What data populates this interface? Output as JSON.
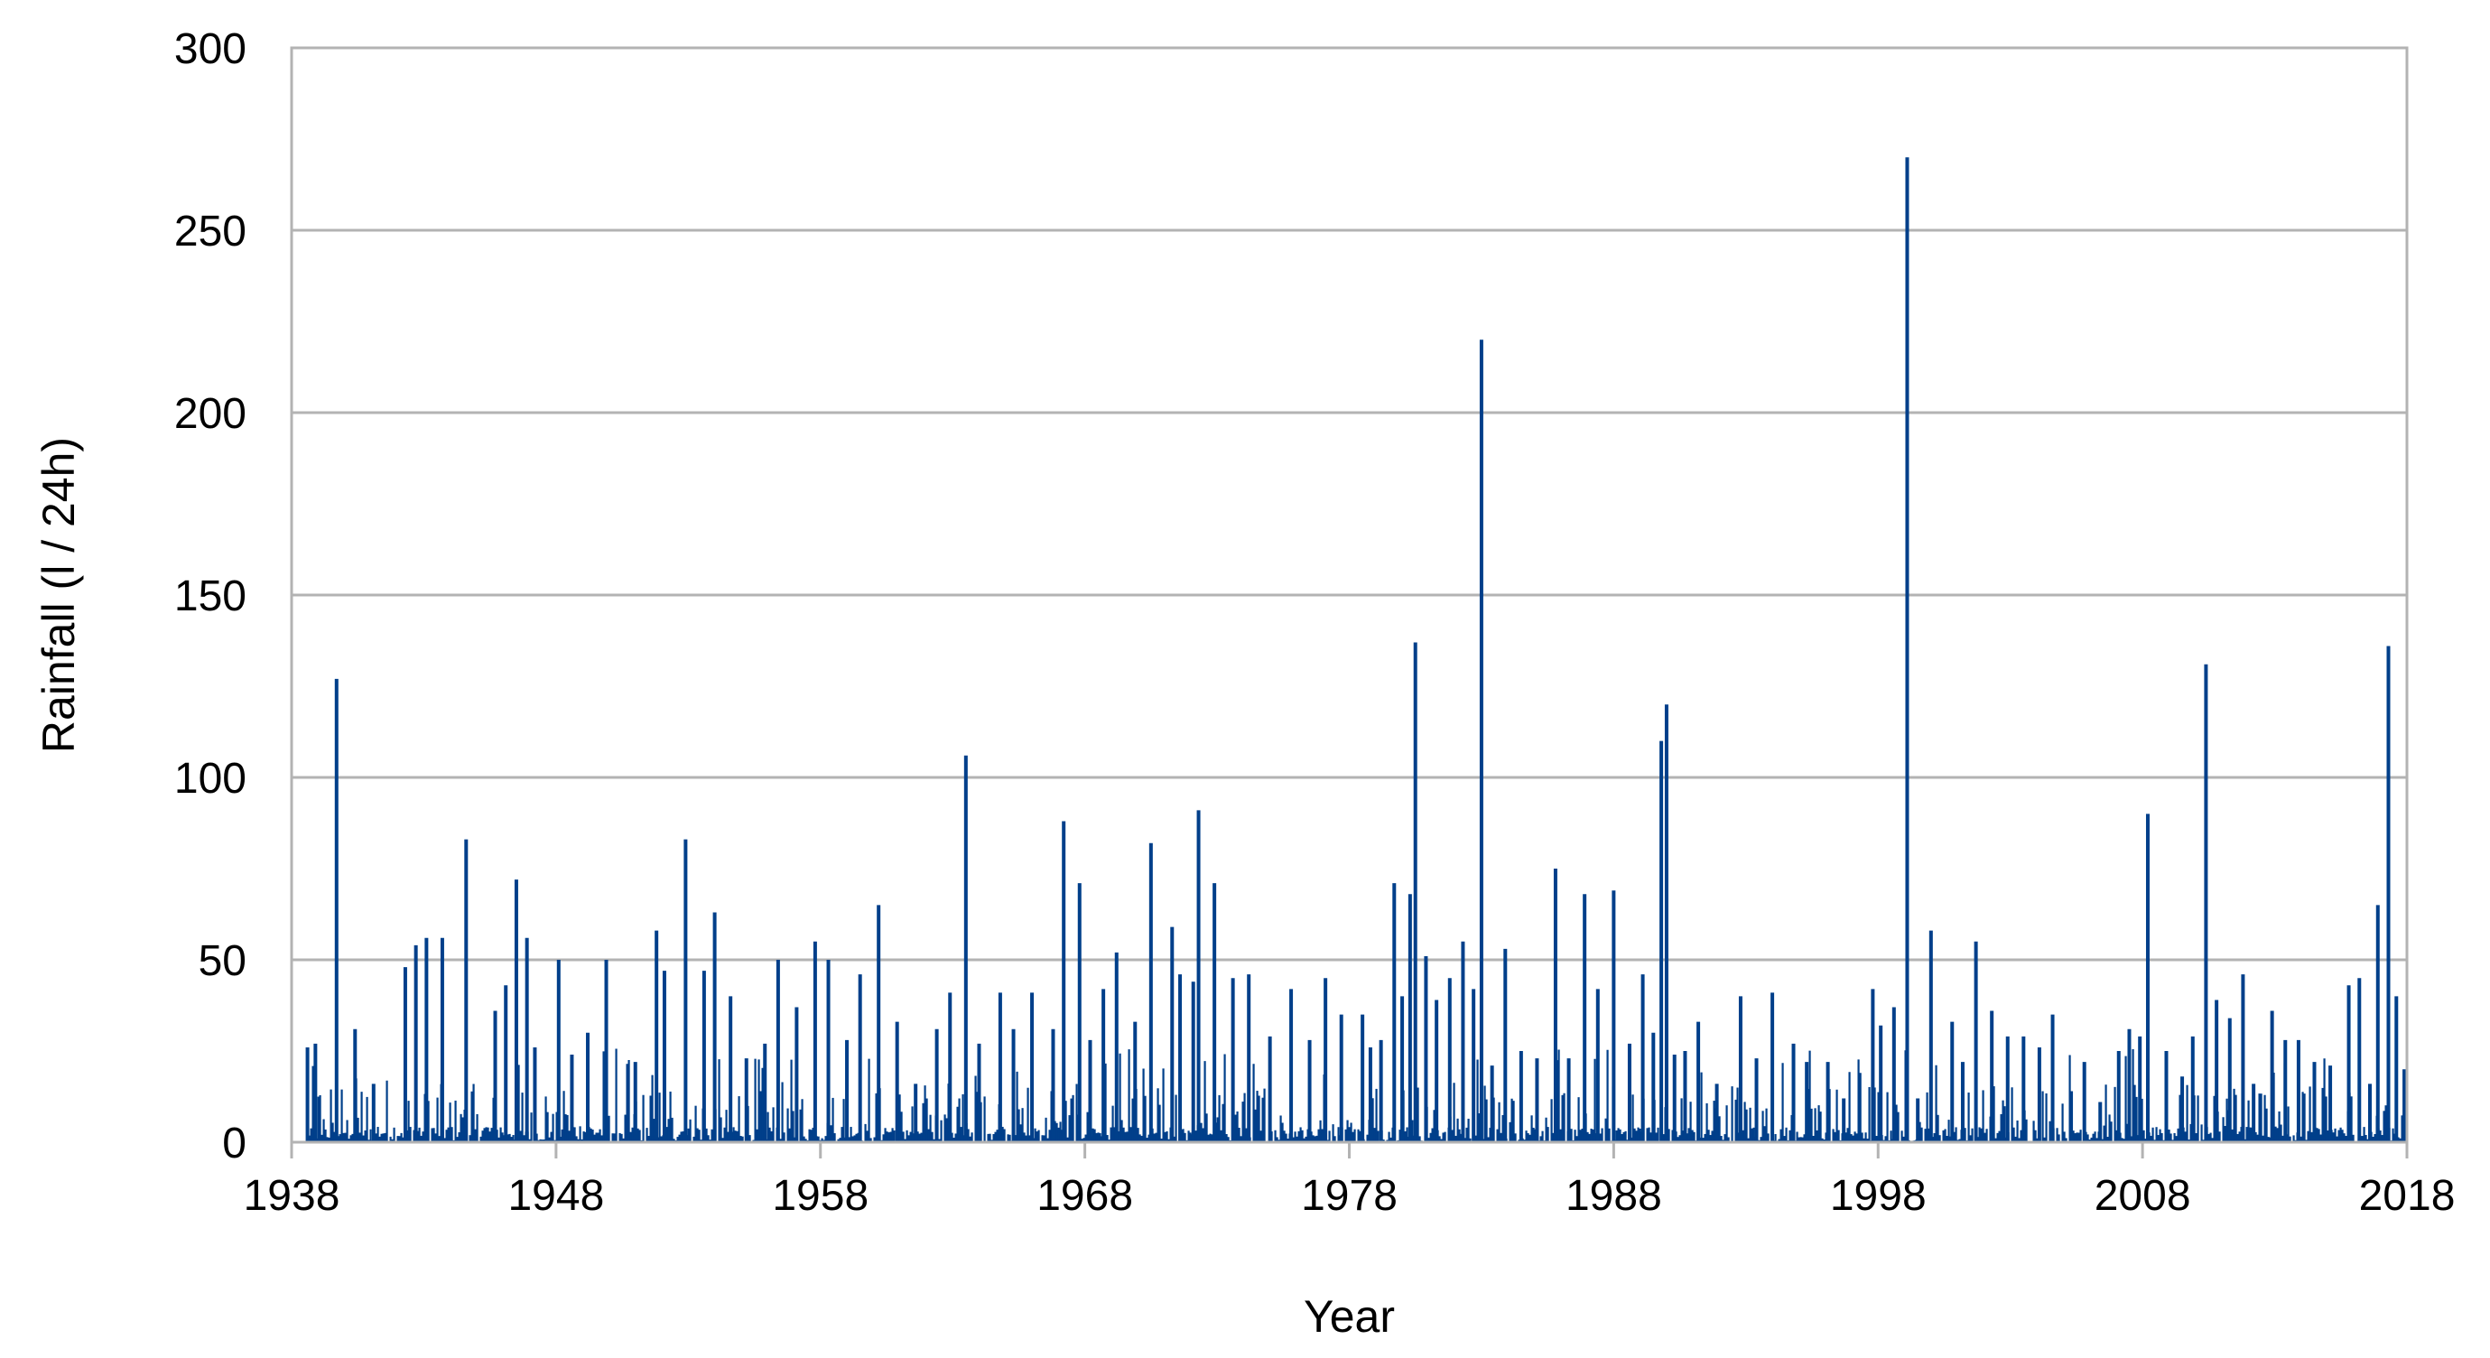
{
  "chart_data": {
    "type": "bar",
    "title": "",
    "xlabel": "Year",
    "ylabel": "Rainfall (l / 24h)",
    "xlim": [
      1938,
      2018
    ],
    "ylim": [
      0,
      300
    ],
    "x_ticks": [
      "1938",
      "1948",
      "1958",
      "1968",
      "1978",
      "1988",
      "1998",
      "2008",
      "2018"
    ],
    "y_ticks": [
      "0",
      "50",
      "100",
      "150",
      "200",
      "250",
      "300"
    ],
    "grid": true,
    "legend": "none",
    "series": [
      {
        "color": "#003f8a",
        "x": [
          1938.6,
          1938.9,
          1939.7,
          1940.4,
          1941.1,
          1942.3,
          1942.7,
          1943.1,
          1943.7,
          1944.6,
          1945.7,
          1946.1,
          1946.5,
          1946.9,
          1947.2,
          1948.1,
          1948.6,
          1949.2,
          1949.9,
          1951.0,
          1951.8,
          1952.1,
          1952.9,
          1953.6,
          1954.0,
          1954.6,
          1955.2,
          1955.9,
          1956.4,
          1957.1,
          1957.8,
          1958.3,
          1959.0,
          1959.5,
          1960.2,
          1960.9,
          1961.6,
          1962.4,
          1962.9,
          1963.5,
          1964.0,
          1964.8,
          1965.3,
          1966.0,
          1966.8,
          1967.2,
          1967.8,
          1968.2,
          1968.7,
          1969.2,
          1969.9,
          1970.5,
          1971.3,
          1971.6,
          1972.1,
          1972.3,
          1972.9,
          1973.6,
          1974.2,
          1975.0,
          1975.8,
          1976.5,
          1977.1,
          1977.7,
          1978.5,
          1978.8,
          1979.2,
          1979.7,
          1980.0,
          1980.3,
          1980.5,
          1980.9,
          1981.3,
          1981.8,
          1982.3,
          1982.7,
          1983.0,
          1983.4,
          1983.9,
          1984.5,
          1985.1,
          1985.8,
          1986.3,
          1986.9,
          1987.4,
          1988.0,
          1988.6,
          1989.1,
          1989.5,
          1989.8,
          1990.0,
          1990.3,
          1990.7,
          1991.2,
          1991.9,
          1992.8,
          1993.4,
          1994.0,
          1994.8,
          1995.3,
          1996.1,
          1996.7,
          1997.3,
          1997.8,
          1998.1,
          1998.6,
          1999.1,
          1999.5,
          2000.0,
          2000.8,
          2001.2,
          2001.7,
          2002.3,
          2002.9,
          2003.5,
          2004.1,
          2004.6,
          2005.3,
          2005.8,
          2006.4,
          2007.1,
          2007.5,
          2007.9,
          2008.2,
          2008.9,
          2009.5,
          2009.9,
          2010.4,
          2010.8,
          2011.3,
          2011.8,
          2012.2,
          2012.9,
          2013.4,
          2013.9,
          2014.5,
          2015.1,
          2015.8,
          2016.2,
          2016.6,
          2016.9,
          2017.3,
          2017.6,
          2017.9
        ],
        "y": [
          26,
          27,
          127,
          31,
          16,
          48,
          54,
          56,
          56,
          83,
          36,
          43,
          72,
          56,
          26,
          50,
          24,
          30,
          50,
          22,
          58,
          47,
          83,
          47,
          63,
          40,
          23,
          27,
          50,
          37,
          55,
          50,
          28,
          46,
          65,
          33,
          16,
          31,
          41,
          106,
          27,
          41,
          31,
          41,
          31,
          88,
          71,
          28,
          42,
          52,
          33,
          82,
          59,
          46,
          44,
          91,
          71,
          45,
          46,
          29,
          42,
          28,
          45,
          35,
          35,
          26,
          28,
          71,
          40,
          68,
          137,
          51,
          39,
          45,
          55,
          42,
          220,
          21,
          53,
          25,
          23,
          75,
          23,
          68,
          42,
          69,
          27,
          46,
          30,
          110,
          120,
          24,
          25,
          33,
          16,
          40,
          23,
          41,
          27,
          22,
          22,
          12,
          19,
          42,
          32,
          37,
          270,
          12,
          58,
          33,
          22,
          55,
          36,
          29,
          29,
          26,
          35,
          14,
          22,
          11,
          25,
          31,
          29,
          90,
          25,
          18,
          29,
          131,
          39,
          34,
          46,
          16,
          36,
          28,
          28,
          22,
          21,
          43,
          45,
          16,
          65,
          136,
          40,
          20
        ]
      }
    ]
  }
}
